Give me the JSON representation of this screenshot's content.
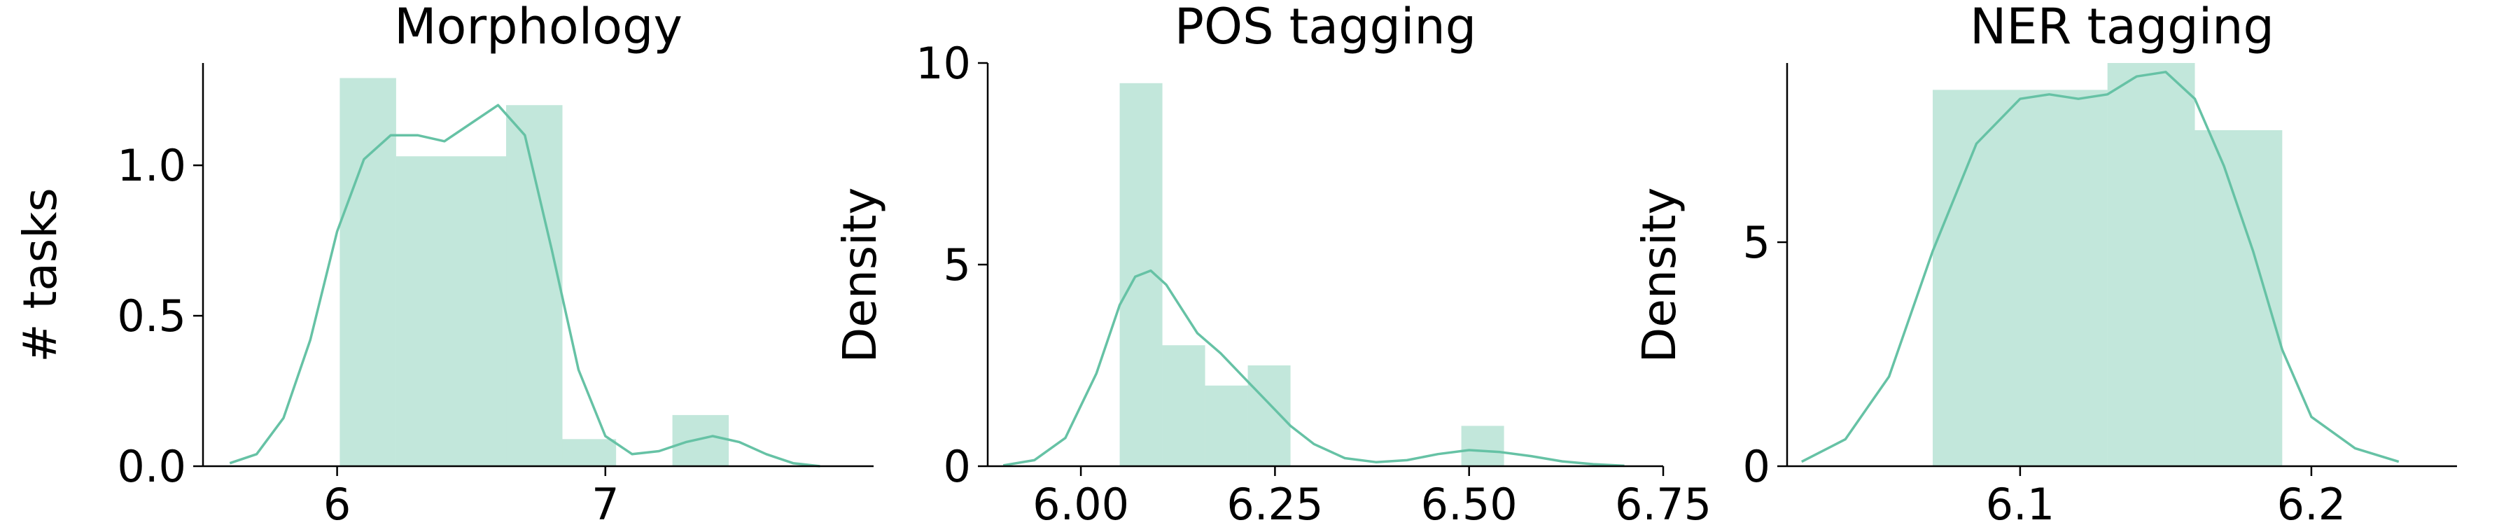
{
  "style": {
    "fill_color": "#66c2a5",
    "fill_alpha": 0.4,
    "line_color": "#66c2a5",
    "axis_color": "#000000"
  },
  "chart_data": [
    {
      "type": "histogram-with-kde",
      "title": "Morphology",
      "ylabel": "# tasks",
      "xlabel": "",
      "xlim": [
        5.5,
        8.0
      ],
      "ylim": [
        0,
        1.34
      ],
      "xticks": [
        6,
        7
      ],
      "xtick_labels": [
        "6",
        "7"
      ],
      "yticks": [
        0.0,
        0.5,
        1.0
      ],
      "ytick_labels": [
        "0.0",
        "0.5",
        "1.0"
      ],
      "bins": [
        {
          "x0": 6.01,
          "x1": 6.22,
          "height": 1.29
        },
        {
          "x0": 6.22,
          "x1": 6.63,
          "height": 1.03
        },
        {
          "x0": 6.63,
          "x1": 6.84,
          "height": 1.2
        },
        {
          "x0": 6.84,
          "x1": 7.04,
          "height": 0.09
        },
        {
          "x0": 7.25,
          "x1": 7.46,
          "height": 0.17
        }
      ],
      "kde": {
        "x": [
          5.6,
          5.7,
          5.8,
          5.9,
          6.0,
          6.1,
          6.2,
          6.3,
          6.4,
          6.5,
          6.6,
          6.7,
          6.8,
          6.9,
          7.0,
          7.1,
          7.2,
          7.3,
          7.4,
          7.5,
          7.6,
          7.7,
          7.8
        ],
        "y": [
          0.01,
          0.04,
          0.16,
          0.42,
          0.78,
          1.02,
          1.1,
          1.1,
          1.08,
          1.14,
          1.2,
          1.1,
          0.72,
          0.32,
          0.1,
          0.04,
          0.05,
          0.08,
          0.1,
          0.08,
          0.04,
          0.01,
          0.0
        ]
      },
      "grid": false,
      "legend": "none"
    },
    {
      "type": "histogram-with-kde",
      "title": "POS tagging",
      "ylabel": "Density",
      "xlabel": "",
      "xlim": [
        5.88,
        6.75
      ],
      "ylim": [
        0,
        10
      ],
      "xticks": [
        6.0,
        6.25,
        6.5,
        6.75
      ],
      "xtick_labels": [
        "6.00",
        "6.25",
        "6.50",
        "6.75"
      ],
      "yticks": [
        0,
        5,
        10
      ],
      "ytick_labels": [
        "0",
        "5",
        "10"
      ],
      "bins": [
        {
          "x0": 6.05,
          "x1": 6.105,
          "height": 9.5
        },
        {
          "x0": 6.105,
          "x1": 6.16,
          "height": 3.0
        },
        {
          "x0": 6.16,
          "x1": 6.215,
          "height": 2.0
        },
        {
          "x0": 6.215,
          "x1": 6.27,
          "height": 2.5
        },
        {
          "x0": 6.49,
          "x1": 6.545,
          "height": 1.0
        }
      ],
      "kde": {
        "x": [
          5.9,
          5.94,
          5.98,
          6.02,
          6.05,
          6.07,
          6.09,
          6.11,
          6.13,
          6.15,
          6.18,
          6.21,
          6.24,
          6.27,
          6.3,
          6.34,
          6.38,
          6.42,
          6.46,
          6.5,
          6.54,
          6.58,
          6.62,
          6.66,
          6.7
        ],
        "y": [
          0.02,
          0.15,
          0.7,
          2.3,
          4.0,
          4.7,
          4.85,
          4.5,
          3.9,
          3.3,
          2.8,
          2.2,
          1.6,
          1.0,
          0.55,
          0.2,
          0.1,
          0.15,
          0.3,
          0.4,
          0.35,
          0.25,
          0.12,
          0.05,
          0.01
        ]
      },
      "grid": false,
      "legend": "none"
    },
    {
      "type": "histogram-with-kde",
      "title": "NER tagging",
      "ylabel": "Density",
      "xlabel": "",
      "xlim": [
        6.02,
        6.25
      ],
      "ylim": [
        0,
        9
      ],
      "xticks": [
        6.1,
        6.2
      ],
      "xtick_labels": [
        "6.1",
        "6.2"
      ],
      "yticks": [
        0,
        5
      ],
      "ytick_labels": [
        "0",
        "5"
      ],
      "bins": [
        {
          "x0": 6.07,
          "x1": 6.13,
          "height": 8.4
        },
        {
          "x0": 6.13,
          "x1": 6.16,
          "height": 9.0
        },
        {
          "x0": 6.16,
          "x1": 6.19,
          "height": 7.5
        }
      ],
      "kde": {
        "x": [
          6.025,
          6.04,
          6.055,
          6.07,
          6.085,
          6.1,
          6.11,
          6.12,
          6.13,
          6.14,
          6.15,
          6.16,
          6.17,
          6.18,
          6.19,
          6.2,
          6.215,
          6.23
        ],
        "y": [
          0.1,
          0.6,
          2.0,
          4.8,
          7.2,
          8.2,
          8.3,
          8.2,
          8.3,
          8.7,
          8.8,
          8.2,
          6.7,
          4.8,
          2.6,
          1.1,
          0.4,
          0.1
        ]
      },
      "grid": false,
      "legend": "none"
    }
  ]
}
